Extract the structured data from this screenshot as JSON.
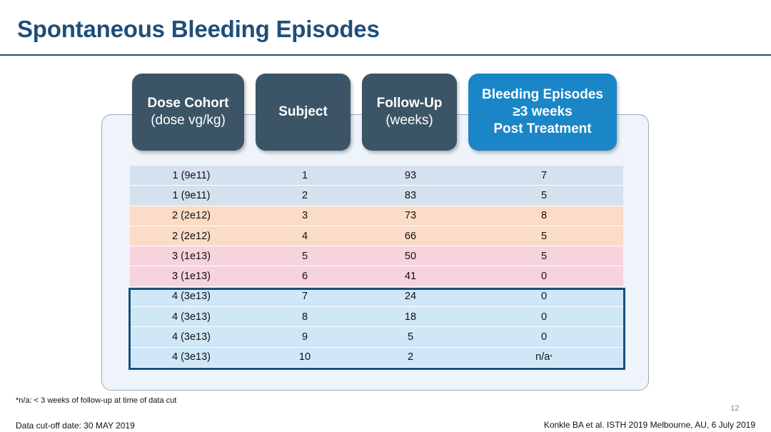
{
  "slide": {
    "title": "Spontaneous Bleeding Episodes",
    "page_number": "12"
  },
  "headers": {
    "dose_cohort": {
      "main": "Dose Cohort",
      "sub": "(dose vg/kg)"
    },
    "subject": {
      "main": "Subject"
    },
    "follow_up": {
      "main": "Follow-Up",
      "sub": "(weeks)"
    },
    "bleeding": {
      "line1": "Bleeding Episodes",
      "line2": "≥3 weeks",
      "line3": "Post Treatment"
    }
  },
  "table": {
    "rows": [
      {
        "cohort": "1 (9e11)",
        "subject": "1",
        "follow_up": "93",
        "bleeds": "7",
        "group": 1
      },
      {
        "cohort": "1 (9e11)",
        "subject": "2",
        "follow_up": "83",
        "bleeds": "5",
        "group": 1
      },
      {
        "cohort": "2 (2e12)",
        "subject": "3",
        "follow_up": "73",
        "bleeds": "8",
        "group": 2
      },
      {
        "cohort": "2 (2e12)",
        "subject": "4",
        "follow_up": "66",
        "bleeds": "5",
        "group": 2
      },
      {
        "cohort": "3 (1e13)",
        "subject": "5",
        "follow_up": "50",
        "bleeds": "5",
        "group": 3
      },
      {
        "cohort": "3 (1e13)",
        "subject": "6",
        "follow_up": "41",
        "bleeds": "0",
        "group": 3
      },
      {
        "cohort": "4 (3e13)",
        "subject": "7",
        "follow_up": "24",
        "bleeds": "0",
        "group": 4
      },
      {
        "cohort": "4 (3e13)",
        "subject": "8",
        "follow_up": "18",
        "bleeds": "0",
        "group": 4
      },
      {
        "cohort": "4 (3e13)",
        "subject": "9",
        "follow_up": "5",
        "bleeds": "0",
        "group": 4
      },
      {
        "cohort": "4 (3e13)",
        "subject": "10",
        "follow_up": "2",
        "bleeds": "n/a",
        "bleeds_sup": "*",
        "group": 4
      }
    ]
  },
  "footer": {
    "footnote": "*n/a: < 3 weeks of follow-up at time of data cut",
    "cutoff": "Data cut-off date: 30 MAY 2019",
    "citation": "Konkle BA et al. ISTH 2019 Melbourne, AU, 6 July 2019"
  },
  "colors": {
    "title": "#1f4e79",
    "header_dark": "#3b5566",
    "header_accent": "#1a86c7",
    "cohort_1": "#d5e1ee",
    "cohort_2": "#fbdcc6",
    "cohort_3": "#f6d3dd",
    "cohort_4": "#cfe7f7",
    "highlight_border": "#1b4f7a"
  }
}
